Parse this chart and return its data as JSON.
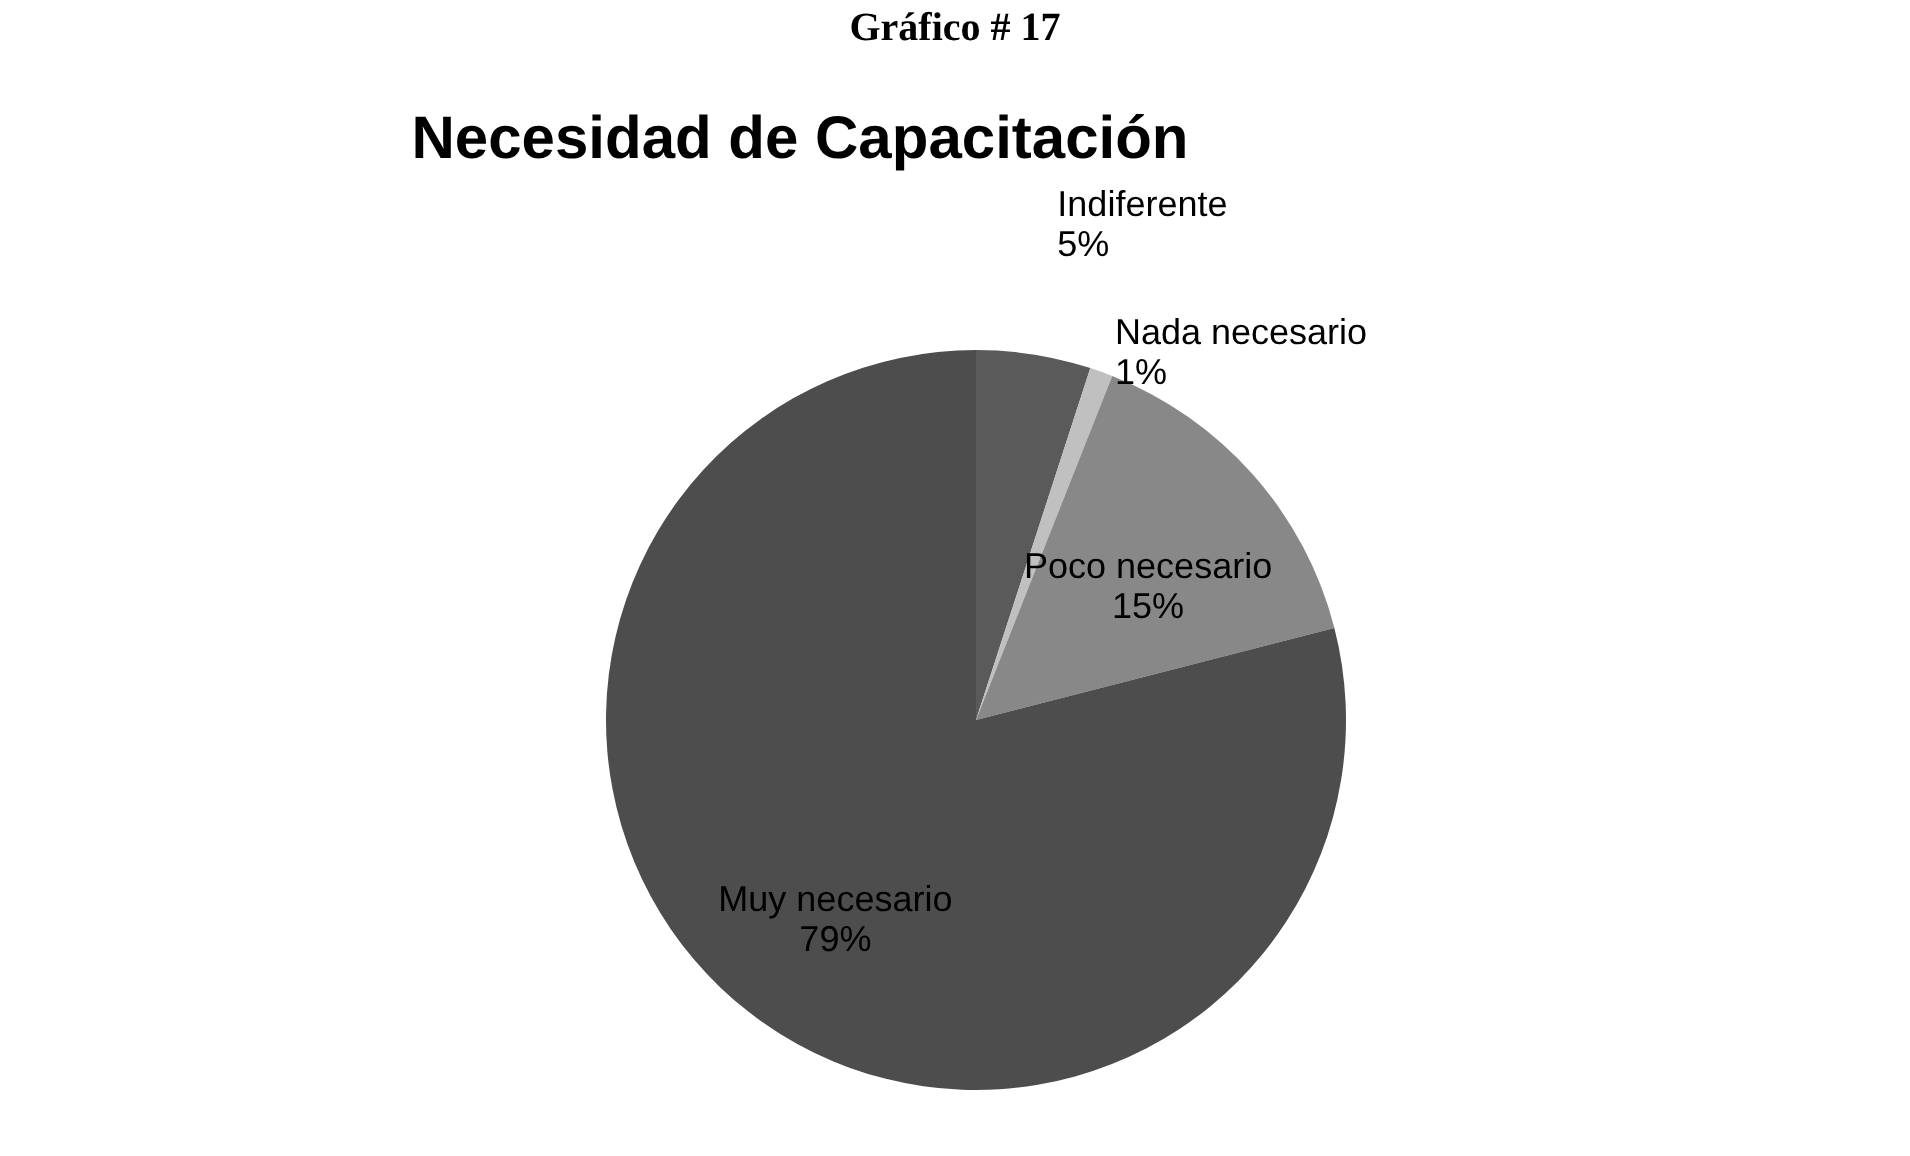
{
  "chart_data": {
    "type": "pie",
    "title": "Necesidad de Capacitación",
    "annotations": [
      "Gráfico # 17"
    ],
    "categories": [
      "Indiferente",
      "Nada necesario",
      "Poco necesario",
      "Muy necesario"
    ],
    "values": [
      5,
      1,
      15,
      79
    ],
    "colors": [
      "#5a5a5a",
      "#c0c0c0",
      "#888888",
      "#4d4d4d"
    ],
    "value_labels": [
      "5%",
      "1%",
      "15%",
      "79%"
    ]
  }
}
